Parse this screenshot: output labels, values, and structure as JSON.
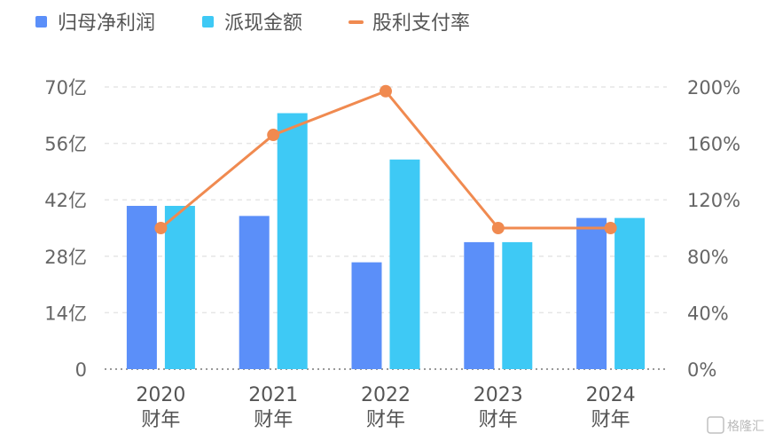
{
  "chart_data": {
    "type": "bar",
    "categories": [
      {
        "year": "2020",
        "suffix": "财年"
      },
      {
        "year": "2021",
        "suffix": "财年"
      },
      {
        "year": "2022",
        "suffix": "财年"
      },
      {
        "year": "2023",
        "suffix": "财年"
      },
      {
        "year": "2024",
        "suffix": "财年"
      }
    ],
    "series": [
      {
        "name": "归母净利润",
        "kind": "bar",
        "axis": "left",
        "color": "#5b8ff9",
        "values": [
          40.5,
          38.0,
          26.5,
          31.5,
          37.5
        ]
      },
      {
        "name": "派现金额",
        "kind": "bar",
        "axis": "left",
        "color": "#3ec9f5",
        "values": [
          40.5,
          63.5,
          52.0,
          31.5,
          37.5
        ]
      },
      {
        "name": "股利支付率",
        "kind": "line",
        "axis": "right",
        "color": "#f08a50",
        "values": [
          100,
          166,
          197,
          100,
          100
        ]
      }
    ],
    "left_axis": {
      "ylim": [
        0,
        70
      ],
      "ticks": [
        0,
        14,
        28,
        42,
        56,
        70
      ],
      "labels": [
        "0",
        "14亿",
        "28亿",
        "42亿",
        "56亿",
        "70亿"
      ]
    },
    "right_axis": {
      "ylim": [
        0,
        200
      ],
      "ticks": [
        0,
        40,
        80,
        120,
        160,
        200
      ],
      "labels": [
        "0%",
        "40%",
        "80%",
        "120%",
        "160%",
        "200%"
      ]
    },
    "legend_position": "top-left",
    "grid": true
  },
  "watermark": "格隆汇"
}
